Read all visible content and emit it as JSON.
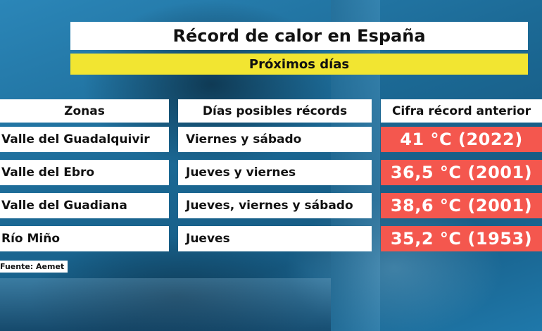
{
  "title": "Récord de calor en España",
  "subtitle": "Próximos días",
  "headers": {
    "zones": "Zonas",
    "days": "Días posibles récords",
    "record": "Cifra récord anterior"
  },
  "rows": [
    {
      "zone": "Valle del Guadalquivir",
      "days": "Viernes y sábado",
      "record": "41 °C (2022)"
    },
    {
      "zone": "Valle del Ebro",
      "days": "Jueves y viernes",
      "record": "36,5 °C (2001)"
    },
    {
      "zone": "Valle del Guadiana",
      "days": "Jueves, viernes y sábado",
      "record": "38,6 °C (2001)"
    },
    {
      "zone": "Río Miño",
      "days": "Jueves",
      "record": "35,2 °C (1953)"
    }
  ],
  "source": "Fuente: Aemet",
  "colors": {
    "title_bg": "#ffffff",
    "subtitle_bg": "#f2e531",
    "record_bg": "#f4574e",
    "background": "#1f6f9a"
  }
}
